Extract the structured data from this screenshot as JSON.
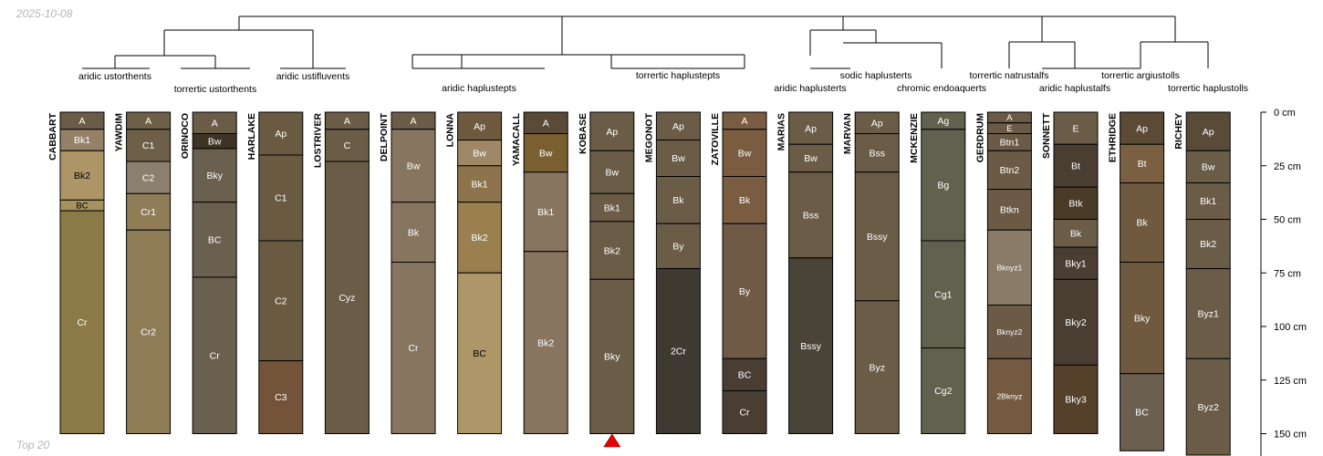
{
  "header": {
    "date": "2025-10-08"
  },
  "footer": {
    "note": "Top 20"
  },
  "chart_data": {
    "type": "soil-profile-sketch",
    "depth_unit": "cm",
    "depth_ticks": [
      0,
      25,
      50,
      75,
      100,
      125,
      150
    ],
    "depth_tick_labels": [
      "0 cm",
      "25 cm",
      "50 cm",
      "75 cm",
      "100 cm",
      "125 cm",
      "150 cm"
    ],
    "ylim": [
      0,
      150
    ],
    "marker": {
      "profile": "KOBASE",
      "symbol": "triangle",
      "color": "#e60000"
    },
    "profiles": [
      {
        "name": "CABBART",
        "taxon": "aridic ustorthents",
        "horizons": [
          {
            "name": "A",
            "top": 0,
            "bottom": 8,
            "color": "#6b5c48"
          },
          {
            "name": "Bk1",
            "top": 8,
            "bottom": 18,
            "color": "#958068"
          },
          {
            "name": "Bk2",
            "top": 18,
            "bottom": 41,
            "color": "#ad9568"
          },
          {
            "name": "BC",
            "top": 41,
            "bottom": 46,
            "color": "#a6925f"
          },
          {
            "name": "Cr",
            "top": 46,
            "bottom": 150,
            "color": "#8b7a48"
          }
        ]
      },
      {
        "name": "YAWDIM",
        "taxon": "torrertic ustorthents",
        "horizons": [
          {
            "name": "A",
            "top": 0,
            "bottom": 8,
            "color": "#6e6048"
          },
          {
            "name": "C1",
            "top": 8,
            "bottom": 23,
            "color": "#6e6048"
          },
          {
            "name": "C2",
            "top": 23,
            "bottom": 38,
            "color": "#8b806e"
          },
          {
            "name": "Cr1",
            "top": 38,
            "bottom": 55,
            "color": "#8f7d58"
          },
          {
            "name": "Cr2",
            "top": 55,
            "bottom": 150,
            "color": "#8f7d58"
          }
        ]
      },
      {
        "name": "ORINOCO",
        "taxon": "aridic ustifluvents",
        "horizons": [
          {
            "name": "A",
            "top": 0,
            "bottom": 10,
            "color": "#6b5c48"
          },
          {
            "name": "Bw",
            "top": 10,
            "bottom": 17,
            "color": "#3e3424"
          },
          {
            "name": "Bky",
            "top": 17,
            "bottom": 42,
            "color": "#6b6050"
          },
          {
            "name": "BC",
            "top": 42,
            "bottom": 77,
            "color": "#6b6050"
          },
          {
            "name": "Cr",
            "top": 77,
            "bottom": 150,
            "color": "#6b6050"
          }
        ]
      },
      {
        "name": "HARLAKE",
        "taxon": "",
        "horizons": [
          {
            "name": "Ap",
            "top": 0,
            "bottom": 20,
            "color": "#6b5a42"
          },
          {
            "name": "C1",
            "top": 20,
            "bottom": 60,
            "color": "#6b5a42"
          },
          {
            "name": "C2",
            "top": 60,
            "bottom": 116,
            "color": "#6b5a42"
          },
          {
            "name": "C3",
            "top": 116,
            "bottom": 150,
            "color": "#735438"
          }
        ]
      },
      {
        "name": "LOSTRIVER",
        "taxon": "",
        "horizons": [
          {
            "name": "A",
            "top": 0,
            "bottom": 8,
            "color": "#6b5c48"
          },
          {
            "name": "C",
            "top": 8,
            "bottom": 23,
            "color": "#6b5c48"
          },
          {
            "name": "Cyz",
            "top": 23,
            "bottom": 150,
            "color": "#6b5c48"
          }
        ]
      },
      {
        "name": "DELPOINT",
        "taxon": "aridic haplustepts",
        "horizons": [
          {
            "name": "A",
            "top": 0,
            "bottom": 8,
            "color": "#6b5c48"
          },
          {
            "name": "Bw",
            "top": 8,
            "bottom": 42,
            "color": "#867660"
          },
          {
            "name": "Bk",
            "top": 42,
            "bottom": 70,
            "color": "#867660"
          },
          {
            "name": "Cr",
            "top": 70,
            "bottom": 150,
            "color": "#867660"
          }
        ]
      },
      {
        "name": "LONNA",
        "taxon": "",
        "horizons": [
          {
            "name": "Ap",
            "top": 0,
            "bottom": 13,
            "color": "#6f5a40"
          },
          {
            "name": "Bw",
            "top": 13,
            "bottom": 25,
            "color": "#9e8868"
          },
          {
            "name": "Bk1",
            "top": 25,
            "bottom": 42,
            "color": "#8e744c"
          },
          {
            "name": "Bk2",
            "top": 42,
            "bottom": 75,
            "color": "#9a7f4f"
          },
          {
            "name": "BC",
            "top": 75,
            "bottom": 150,
            "color": "#ad9769"
          }
        ]
      },
      {
        "name": "YAMACALL",
        "taxon": "",
        "horizons": [
          {
            "name": "A",
            "top": 0,
            "bottom": 10,
            "color": "#5a4a38"
          },
          {
            "name": "Bw",
            "top": 10,
            "bottom": 28,
            "color": "#7a6030"
          },
          {
            "name": "Bk1",
            "top": 28,
            "bottom": 65,
            "color": "#877560"
          },
          {
            "name": "Bk2",
            "top": 65,
            "bottom": 150,
            "color": "#877560"
          }
        ]
      },
      {
        "name": "KOBASE",
        "taxon": "",
        "horizons": [
          {
            "name": "Ap",
            "top": 0,
            "bottom": 18,
            "color": "#6b5c48"
          },
          {
            "name": "Bw",
            "top": 18,
            "bottom": 38,
            "color": "#6b5c48"
          },
          {
            "name": "Bk1",
            "top": 38,
            "bottom": 51,
            "color": "#6b5c48"
          },
          {
            "name": "Bk2",
            "top": 51,
            "bottom": 78,
            "color": "#6b5c48"
          },
          {
            "name": "Bky",
            "top": 78,
            "bottom": 150,
            "color": "#6b5c48"
          }
        ]
      },
      {
        "name": "MEGONOT",
        "taxon": "torrertic haplustepts",
        "horizons": [
          {
            "name": "Ap",
            "top": 0,
            "bottom": 13,
            "color": "#6b5c48"
          },
          {
            "name": "Bw",
            "top": 13,
            "bottom": 30,
            "color": "#6b5c48"
          },
          {
            "name": "Bk",
            "top": 30,
            "bottom": 52,
            "color": "#6b5c48"
          },
          {
            "name": "By",
            "top": 52,
            "bottom": 73,
            "color": "#6b5c48"
          },
          {
            "name": "2Cr",
            "top": 73,
            "bottom": 150,
            "color": "#3e3a32"
          }
        ]
      },
      {
        "name": "ZATOVILLE",
        "taxon": "",
        "horizons": [
          {
            "name": "A",
            "top": 0,
            "bottom": 8,
            "color": "#7a5c40"
          },
          {
            "name": "Bw",
            "top": 8,
            "bottom": 30,
            "color": "#7a5c40"
          },
          {
            "name": "Bk",
            "top": 30,
            "bottom": 52,
            "color": "#7a5c40"
          },
          {
            "name": "By",
            "top": 52,
            "bottom": 115,
            "color": "#6f5a46"
          },
          {
            "name": "BC",
            "top": 115,
            "bottom": 130,
            "color": "#4a3e34"
          },
          {
            "name": "Cr",
            "top": 130,
            "bottom": 150,
            "color": "#4a3e34"
          }
        ]
      },
      {
        "name": "MARIAS",
        "taxon": "aridic haplusterts",
        "horizons": [
          {
            "name": "Ap",
            "top": 0,
            "bottom": 15,
            "color": "#6b5c48"
          },
          {
            "name": "Bw",
            "top": 15,
            "bottom": 28,
            "color": "#6b5c48"
          },
          {
            "name": "Bss",
            "top": 28,
            "bottom": 68,
            "color": "#6b5c48"
          },
          {
            "name": "Bssy",
            "top": 68,
            "bottom": 150,
            "color": "#4a4438"
          }
        ]
      },
      {
        "name": "MARVAN",
        "taxon": "sodic haplusterts",
        "horizons": [
          {
            "name": "Ap",
            "top": 0,
            "bottom": 10,
            "color": "#6b5c48"
          },
          {
            "name": "Bss",
            "top": 10,
            "bottom": 28,
            "color": "#6b5c48"
          },
          {
            "name": "Bssy",
            "top": 28,
            "bottom": 88,
            "color": "#6b5c48"
          },
          {
            "name": "Byz",
            "top": 88,
            "bottom": 150,
            "color": "#6b5c48"
          }
        ]
      },
      {
        "name": "MCKENZIE",
        "taxon": "chromic endoaquerts",
        "horizons": [
          {
            "name": "Ag",
            "top": 0,
            "bottom": 8,
            "color": "#62604e"
          },
          {
            "name": "Bg",
            "top": 8,
            "bottom": 60,
            "color": "#62604e"
          },
          {
            "name": "Cg1",
            "top": 60,
            "bottom": 110,
            "color": "#62604e"
          },
          {
            "name": "Cg2",
            "top": 110,
            "bottom": 150,
            "color": "#62604e"
          }
        ]
      },
      {
        "name": "GERDRUM",
        "taxon": "torrertic natrustalfs",
        "horizons": [
          {
            "name": "A",
            "top": 0,
            "bottom": 5,
            "color": "#6b5a46"
          },
          {
            "name": "E",
            "top": 5,
            "bottom": 10,
            "color": "#6b5a46"
          },
          {
            "name": "Btn1",
            "top": 10,
            "bottom": 18,
            "color": "#6b5a46"
          },
          {
            "name": "Btn2",
            "top": 18,
            "bottom": 36,
            "color": "#6b5a46"
          },
          {
            "name": "Btkn",
            "top": 36,
            "bottom": 55,
            "color": "#6b5a46"
          },
          {
            "name": "Bknyz1",
            "top": 55,
            "bottom": 90,
            "color": "#8a7a68"
          },
          {
            "name": "Bknyz2",
            "top": 90,
            "bottom": 115,
            "color": "#6b5a46"
          },
          {
            "name": "2Bknyz",
            "top": 115,
            "bottom": 150,
            "color": "#735a40"
          }
        ]
      },
      {
        "name": "SONNETT",
        "taxon": "aridic haplustalfs",
        "horizons": [
          {
            "name": "E",
            "top": 0,
            "bottom": 15,
            "color": "#6b5c48"
          },
          {
            "name": "Bt",
            "top": 15,
            "bottom": 35,
            "color": "#4a3e32"
          },
          {
            "name": "Btk",
            "top": 35,
            "bottom": 50,
            "color": "#4a3a28"
          },
          {
            "name": "Bk",
            "top": 50,
            "bottom": 63,
            "color": "#6b5c48"
          },
          {
            "name": "Bky1",
            "top": 63,
            "bottom": 78,
            "color": "#4a3e32"
          },
          {
            "name": "Bky2",
            "top": 78,
            "bottom": 118,
            "color": "#4a3e32"
          },
          {
            "name": "Bky3",
            "top": 118,
            "bottom": 150,
            "color": "#55412a"
          }
        ]
      },
      {
        "name": "ETHRIDGE",
        "taxon": "torrertic argiustolls",
        "horizons": [
          {
            "name": "Ap",
            "top": 0,
            "bottom": 15,
            "color": "#5a4a36"
          },
          {
            "name": "Bt",
            "top": 15,
            "bottom": 33,
            "color": "#7a6040"
          },
          {
            "name": "Bk",
            "top": 33,
            "bottom": 70,
            "color": "#6f5a40"
          },
          {
            "name": "Bky",
            "top": 70,
            "bottom": 122,
            "color": "#6f5a40"
          },
          {
            "name": "BC",
            "top": 122,
            "bottom": 158,
            "color": "#6b6050"
          }
        ]
      },
      {
        "name": "RICHEY",
        "taxon": "torrertic haplustolls",
        "horizons": [
          {
            "name": "Ap",
            "top": 0,
            "bottom": 18,
            "color": "#5a4a38"
          },
          {
            "name": "Bw",
            "top": 18,
            "bottom": 33,
            "color": "#6b5c48"
          },
          {
            "name": "Bk1",
            "top": 33,
            "bottom": 50,
            "color": "#6b5c48"
          },
          {
            "name": "Bk2",
            "top": 50,
            "bottom": 73,
            "color": "#6b5c48"
          },
          {
            "name": "Byz1",
            "top": 73,
            "bottom": 115,
            "color": "#6b5c48"
          },
          {
            "name": "Byz2",
            "top": 115,
            "bottom": 160,
            "color": "#6b5c48"
          }
        ]
      }
    ]
  }
}
